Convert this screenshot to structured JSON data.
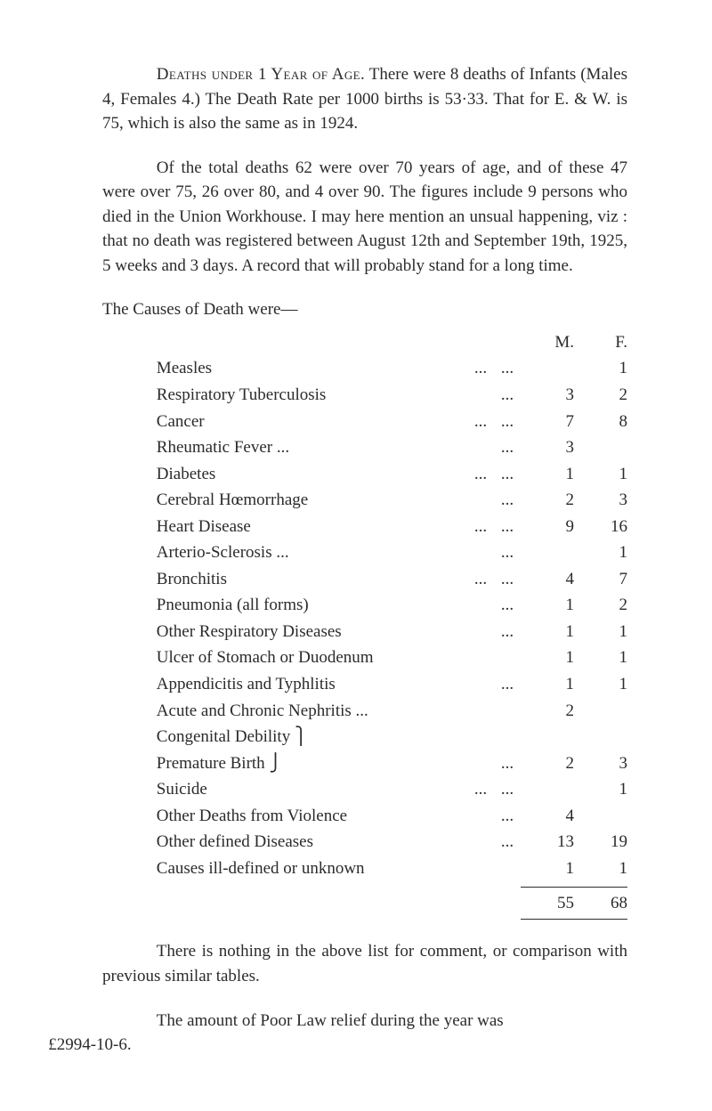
{
  "para1_a": "Deaths under 1 Year of Age.",
  "para1_b": "   There were 8 deaths of Infants (Males 4, Females 4.)  The Death Rate per 1000 births is 53·33.  That for E. & W. is 75, which is also the same as in 1924.",
  "para2": "Of the total deaths 62 were over 70 years of age, and of these 47 were over 75, 26 over 80, and 4 over 90.  The figures include 9 persons who died in the Union Workhouse.  I may here mention an unsual happening, viz : that no death was registered between August 12th and September 19th, 1925, 5 weeks and 3 days.  A record that will probably stand for a long time.",
  "table_intro": "The Causes of Death were—",
  "head_m": "M.",
  "head_f": "F.",
  "rows": [
    {
      "label": "Measles",
      "d1": "...",
      "d2": "...",
      "m": "",
      "f": "1"
    },
    {
      "label": "Respiratory Tuberculosis",
      "d1": "",
      "d2": "...",
      "m": "3",
      "f": "2"
    },
    {
      "label": "Cancer",
      "d1": "...",
      "d2": "...",
      "m": "7",
      "f": "8"
    },
    {
      "label": "Rheumatic Fever   ...",
      "d1": "",
      "d2": "...",
      "m": "3",
      "f": ""
    },
    {
      "label": "Diabetes",
      "d1": "...",
      "d2": "...",
      "m": "1",
      "f": "1"
    },
    {
      "label": "Cerebral Hœmorrhage",
      "d1": "",
      "d2": "...",
      "m": "2",
      "f": "3"
    },
    {
      "label": "Heart Disease",
      "d1": "...",
      "d2": "...",
      "m": "9",
      "f": "16"
    },
    {
      "label": "Arterio-Sclerosis   ...",
      "d1": "",
      "d2": "...",
      "m": "",
      "f": "1"
    },
    {
      "label": "Bronchitis",
      "d1": "...",
      "d2": "...",
      "m": "4",
      "f": "7"
    },
    {
      "label": "Pneumonia (all forms)",
      "d1": "",
      "d2": "...",
      "m": "1",
      "f": "2"
    },
    {
      "label": "Other Respiratory Diseases",
      "d1": "",
      "d2": "...",
      "m": "1",
      "f": "1"
    },
    {
      "label": "Ulcer of Stomach or Duodenum",
      "d1": "",
      "d2": "",
      "m": "1",
      "f": "1"
    },
    {
      "label": "Appendicitis and Typhlitis",
      "d1": "",
      "d2": "...",
      "m": "1",
      "f": "1"
    },
    {
      "label": "Acute and Chronic Nephritis ...",
      "d1": "",
      "d2": "",
      "m": "2",
      "f": ""
    },
    {
      "label": "Congenital Debility   ⎫",
      "d1": "",
      "d2": "",
      "m": "",
      "f": ""
    },
    {
      "label": "Premature Birth         ⎭",
      "d1": "",
      "d2": "...",
      "m": "2",
      "f": "3"
    },
    {
      "label": "Suicide",
      "d1": "...",
      "d2": "...",
      "m": "",
      "f": "1"
    },
    {
      "label": "Other Deaths from Violence",
      "d1": "",
      "d2": "...",
      "m": "4",
      "f": ""
    },
    {
      "label": "Other defined Diseases",
      "d1": "",
      "d2": "...",
      "m": "13",
      "f": "19"
    },
    {
      "label": "Causes ill-defined or unknown",
      "d1": "",
      "d2": "",
      "m": "1",
      "f": "1"
    }
  ],
  "total_m": "55",
  "total_f": "68",
  "para_after1": "There is nothing in the above list for comment, or comparison with previous similar tables.",
  "para_after2_a": "The amount of Poor Law relief during the year was",
  "para_after2_b": "£2994-10-6."
}
